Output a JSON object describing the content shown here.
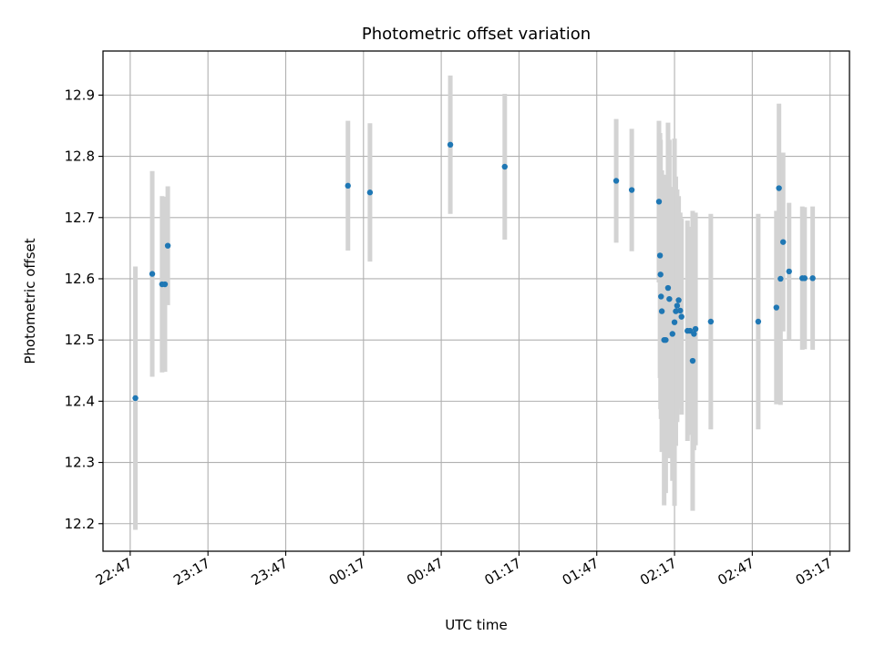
{
  "chart_data": {
    "type": "scatter",
    "title": "Photometric offset variation",
    "xlabel": "UTC time",
    "ylabel": "Photometric offset",
    "x_tick_labels": [
      "22:47",
      "23:17",
      "23:47",
      "00:17",
      "00:47",
      "01:17",
      "01:47",
      "02:17",
      "02:47",
      "03:17"
    ],
    "x_tick_minutes": [
      0,
      30,
      60,
      90,
      120,
      150,
      180,
      210,
      240,
      270
    ],
    "y_ticks": [
      12.2,
      12.3,
      12.4,
      12.5,
      12.6,
      12.7,
      12.8,
      12.9
    ],
    "y_tick_labels": [
      "12.2",
      "12.3",
      "12.4",
      "12.5",
      "12.6",
      "12.7",
      "12.8",
      "12.9"
    ],
    "xlim_minutes": [
      -10.5,
      277.5
    ],
    "ylim": [
      12.155,
      12.972
    ],
    "grid": true,
    "marker_color": "#1f77b4",
    "errorbar_color": "#d3d3d3",
    "points": [
      {
        "t": 2.0,
        "y": 12.405,
        "err": 0.215
      },
      {
        "t": 8.5,
        "y": 12.608,
        "err": 0.168
      },
      {
        "t": 12.3,
        "y": 12.591,
        "err": 0.144
      },
      {
        "t": 13.4,
        "y": 12.591,
        "err": 0.143
      },
      {
        "t": 14.5,
        "y": 12.654,
        "err": 0.097
      },
      {
        "t": 84.0,
        "y": 12.752,
        "err": 0.106
      },
      {
        "t": 92.5,
        "y": 12.741,
        "err": 0.113
      },
      {
        "t": 123.5,
        "y": 12.819,
        "err": 0.113
      },
      {
        "t": 144.5,
        "y": 12.783,
        "err": 0.119
      },
      {
        "t": 187.5,
        "y": 12.76,
        "err": 0.101
      },
      {
        "t": 193.5,
        "y": 12.745,
        "err": 0.1
      },
      {
        "t": 204.0,
        "y": 12.726,
        "err": 0.132
      },
      {
        "t": 204.4,
        "y": 12.638,
        "err": 0.2
      },
      {
        "t": 204.6,
        "y": 12.607,
        "err": 0.22
      },
      {
        "t": 204.8,
        "y": 12.571,
        "err": 0.2
      },
      {
        "t": 205.1,
        "y": 12.547,
        "err": 0.23
      },
      {
        "t": 206.0,
        "y": 12.5,
        "err": 0.27
      },
      {
        "t": 206.6,
        "y": 12.5,
        "err": 0.25
      },
      {
        "t": 207.5,
        "y": 12.585,
        "err": 0.27
      },
      {
        "t": 208.0,
        "y": 12.567,
        "err": 0.26
      },
      {
        "t": 209.2,
        "y": 12.51,
        "err": 0.24
      },
      {
        "t": 210.0,
        "y": 12.529,
        "err": 0.3
      },
      {
        "t": 210.5,
        "y": 12.547,
        "err": 0.22
      },
      {
        "t": 211.0,
        "y": 12.556,
        "err": 0.19
      },
      {
        "t": 211.6,
        "y": 12.565,
        "err": 0.17
      },
      {
        "t": 212.2,
        "y": 12.548,
        "err": 0.16
      },
      {
        "t": 212.7,
        "y": 12.538,
        "err": 0.16
      },
      {
        "t": 215.0,
        "y": 12.515,
        "err": 0.18
      },
      {
        "t": 216.0,
        "y": 12.515,
        "err": 0.17
      },
      {
        "t": 217.0,
        "y": 12.466,
        "err": 0.245
      },
      {
        "t": 217.5,
        "y": 12.51,
        "err": 0.19
      },
      {
        "t": 218.1,
        "y": 12.518,
        "err": 0.19
      },
      {
        "t": 224.0,
        "y": 12.53,
        "err": 0.176
      },
      {
        "t": 242.3,
        "y": 12.53,
        "err": 0.176
      },
      {
        "t": 249.3,
        "y": 12.553,
        "err": 0.158
      },
      {
        "t": 250.3,
        "y": 12.748,
        "err": 0.138
      },
      {
        "t": 250.9,
        "y": 12.6,
        "err": 0.206
      },
      {
        "t": 251.9,
        "y": 12.66,
        "err": 0.146
      },
      {
        "t": 254.2,
        "y": 12.612,
        "err": 0.112
      },
      {
        "t": 259.3,
        "y": 12.601,
        "err": 0.117
      },
      {
        "t": 260.2,
        "y": 12.601,
        "err": 0.116
      },
      {
        "t": 263.3,
        "y": 12.601,
        "err": 0.117
      }
    ]
  }
}
